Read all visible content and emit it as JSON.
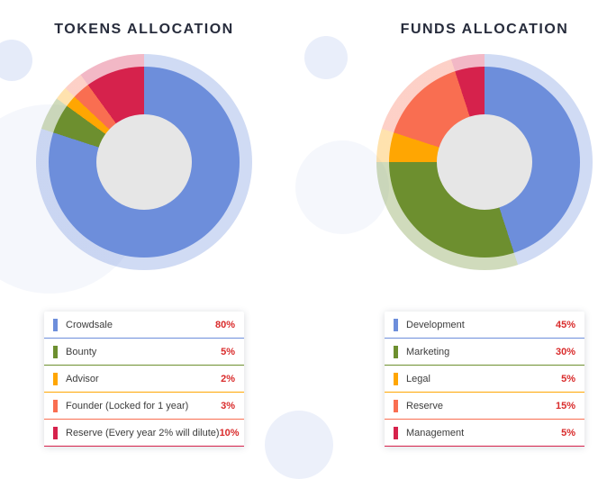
{
  "legend_value_color": "#d92b2b",
  "chart_data": [
    {
      "type": "pie",
      "style": "donut",
      "title": "TOKENS ALLOCATION",
      "categories": [
        "Crowdsale",
        "Bounty",
        "Advisor",
        "Founder (Locked for 1 year)",
        "Reserve (Every year 2% will dilute)"
      ],
      "values": [
        80,
        5,
        2,
        3,
        10
      ],
      "value_labels": [
        "80%",
        "5%",
        "2%",
        "3%",
        "10%"
      ],
      "colors": [
        "#6d8edb",
        "#6d8f2f",
        "#ffa602",
        "#f96e51",
        "#d6224c"
      ],
      "hole_color": "#e6e6e6",
      "start_angle": "top",
      "direction": "clockwise",
      "legend_position": "bottom"
    },
    {
      "type": "pie",
      "style": "donut",
      "title": "FUNDS ALLOCATION",
      "categories": [
        "Development",
        "Marketing",
        "Legal",
        "Reserve",
        "Management"
      ],
      "values": [
        45,
        30,
        5,
        15,
        5
      ],
      "value_labels": [
        "45%",
        "30%",
        "5%",
        "15%",
        "5%"
      ],
      "colors": [
        "#6d8edb",
        "#6d8f2f",
        "#ffa602",
        "#f96e51",
        "#d6224c"
      ],
      "hole_color": "#e6e6e6",
      "start_angle": "top",
      "direction": "clockwise",
      "legend_position": "bottom"
    }
  ]
}
